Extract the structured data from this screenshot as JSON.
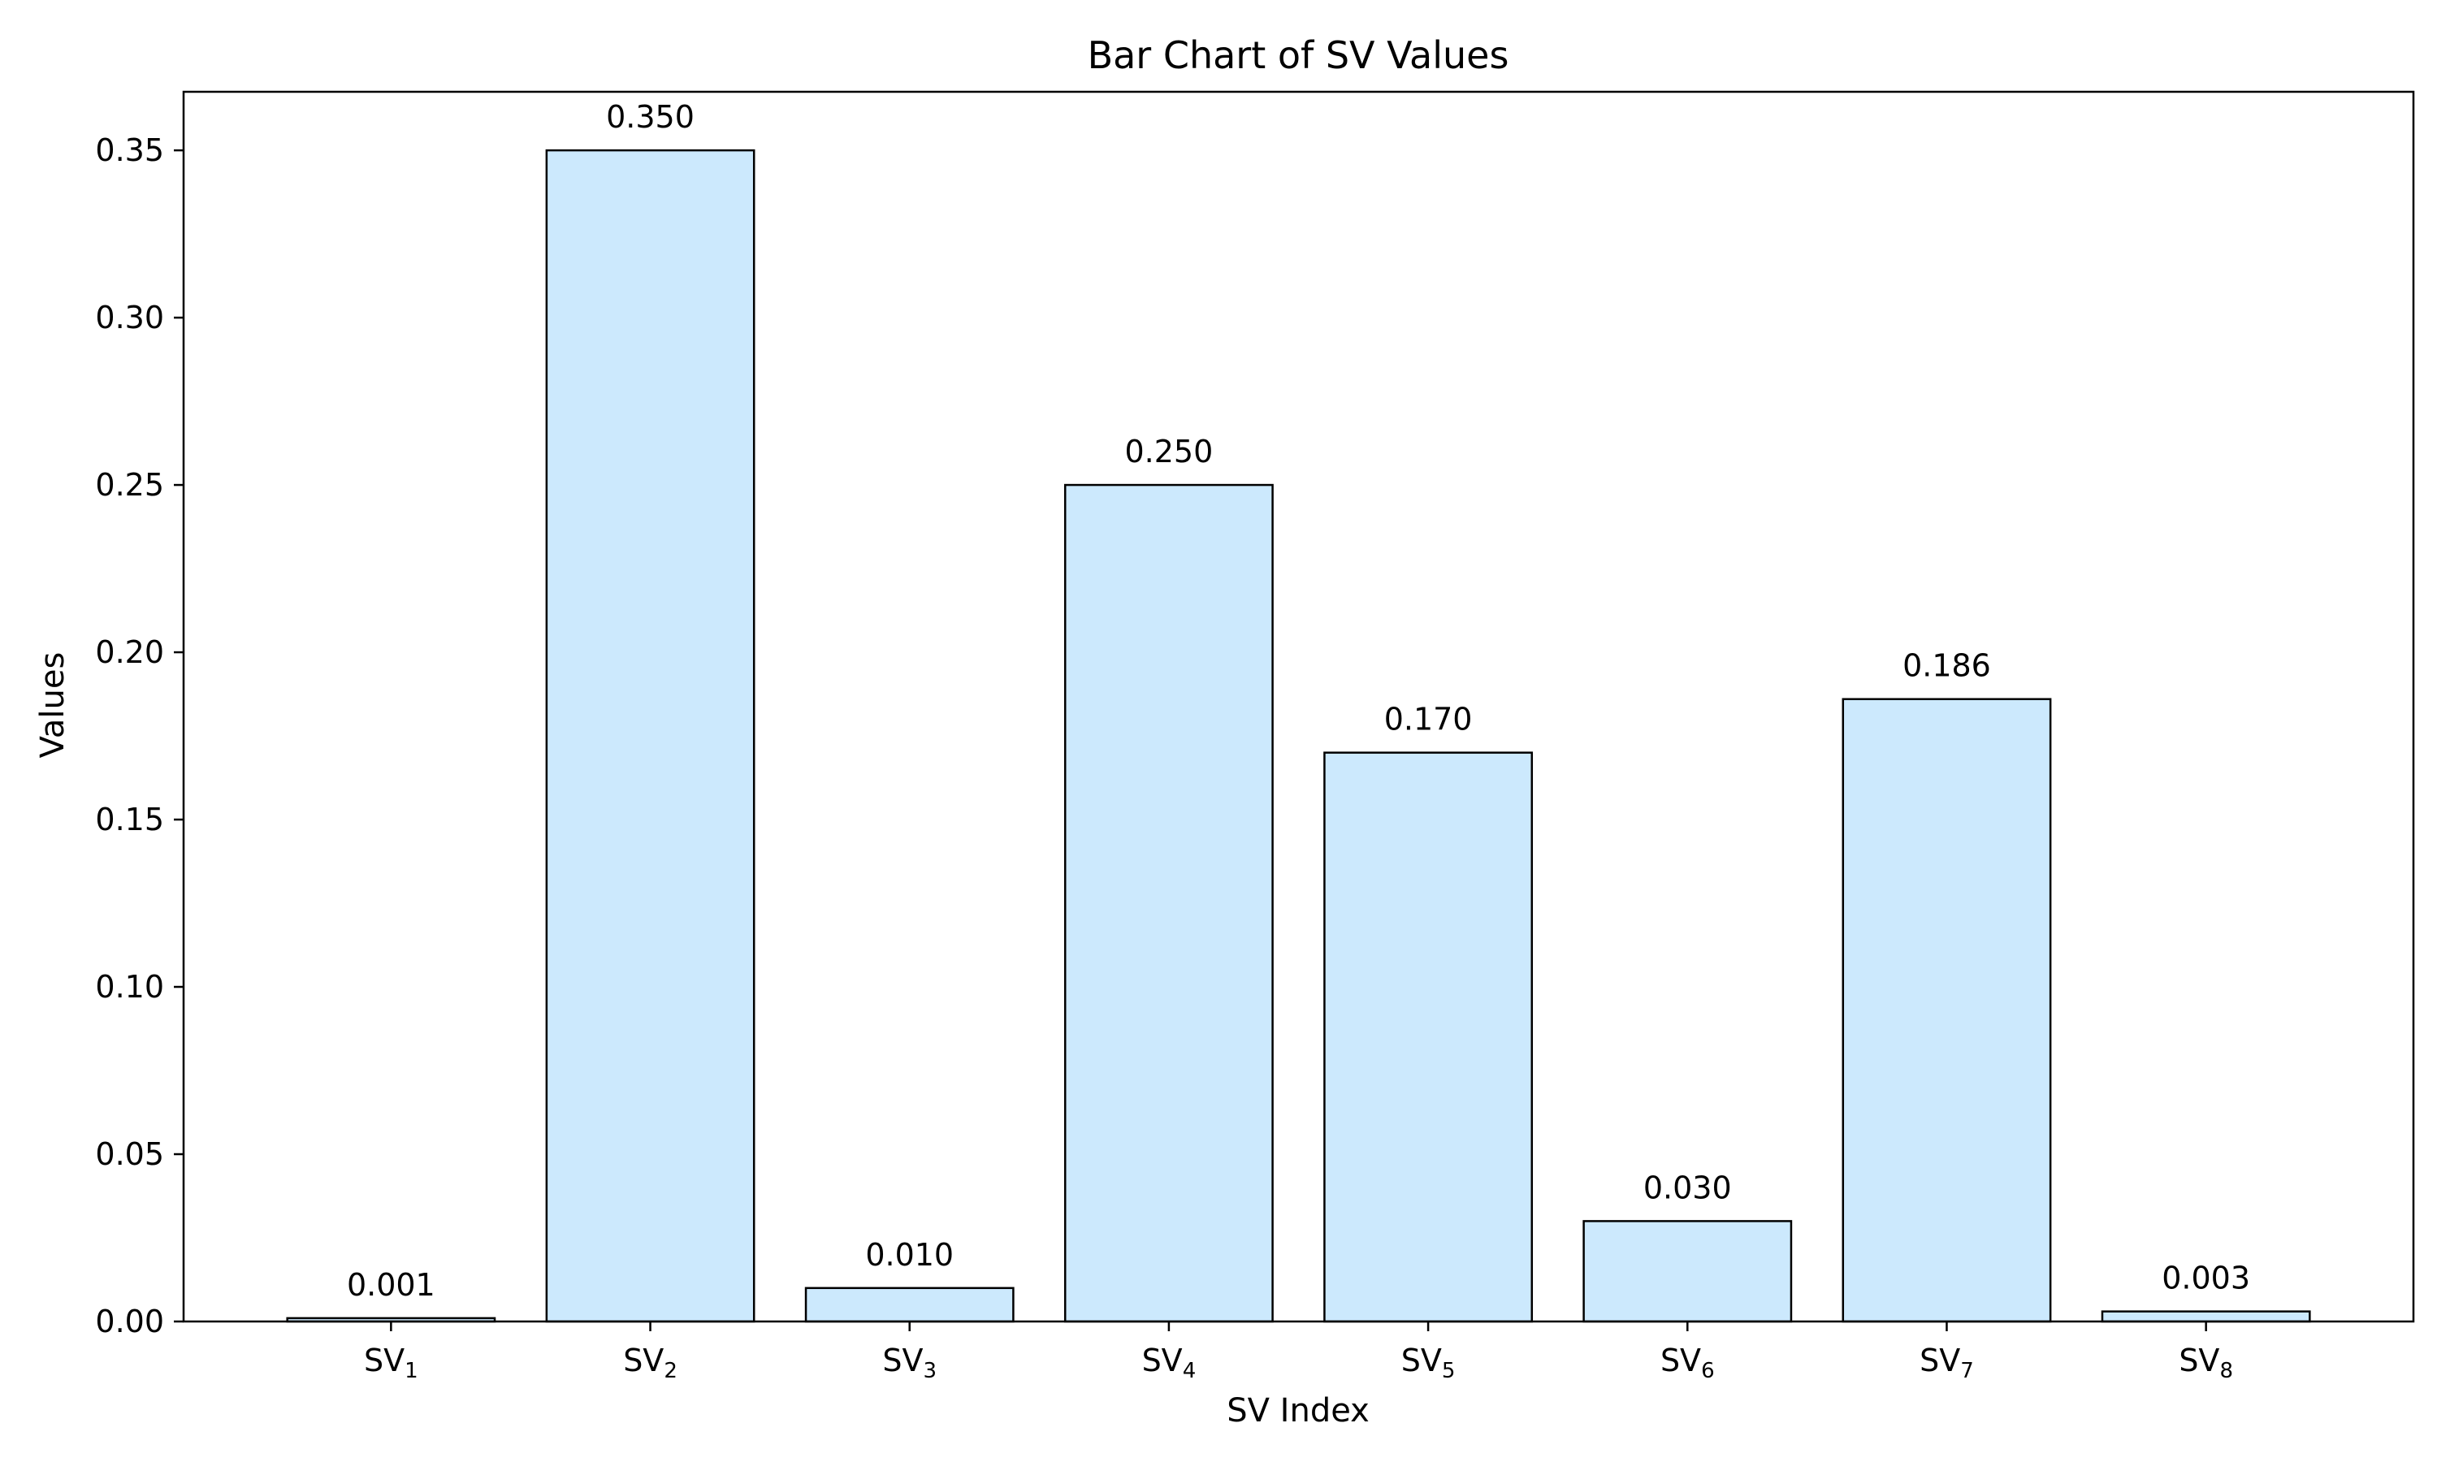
{
  "chart_data": {
    "type": "bar",
    "title": "Bar Chart of SV Values",
    "xlabel": "SV Index",
    "ylabel": "Values",
    "categories": [
      {
        "base": "SV",
        "sub": "1"
      },
      {
        "base": "SV",
        "sub": "2"
      },
      {
        "base": "SV",
        "sub": "3"
      },
      {
        "base": "SV",
        "sub": "4"
      },
      {
        "base": "SV",
        "sub": "5"
      },
      {
        "base": "SV",
        "sub": "6"
      },
      {
        "base": "SV",
        "sub": "7"
      },
      {
        "base": "SV",
        "sub": "8"
      }
    ],
    "values": [
      0.001,
      0.35,
      0.01,
      0.25,
      0.17,
      0.03,
      0.186,
      0.003
    ],
    "value_labels": [
      "0.001",
      "0.350",
      "0.010",
      "0.250",
      "0.170",
      "0.030",
      "0.186",
      "0.003"
    ],
    "ylim": [
      0,
      0.3675
    ],
    "yticks": [
      {
        "value": 0.0,
        "label": "0.00"
      },
      {
        "value": 0.05,
        "label": "0.05"
      },
      {
        "value": 0.1,
        "label": "0.10"
      },
      {
        "value": 0.15,
        "label": "0.15"
      },
      {
        "value": 0.2,
        "label": "0.20"
      },
      {
        "value": 0.25,
        "label": "0.25"
      },
      {
        "value": 0.3,
        "label": "0.30"
      },
      {
        "value": 0.35,
        "label": "0.35"
      }
    ],
    "grid": false,
    "colors": {
      "bar_fill": "#cce9fd",
      "bar_edge": "#000000"
    }
  }
}
